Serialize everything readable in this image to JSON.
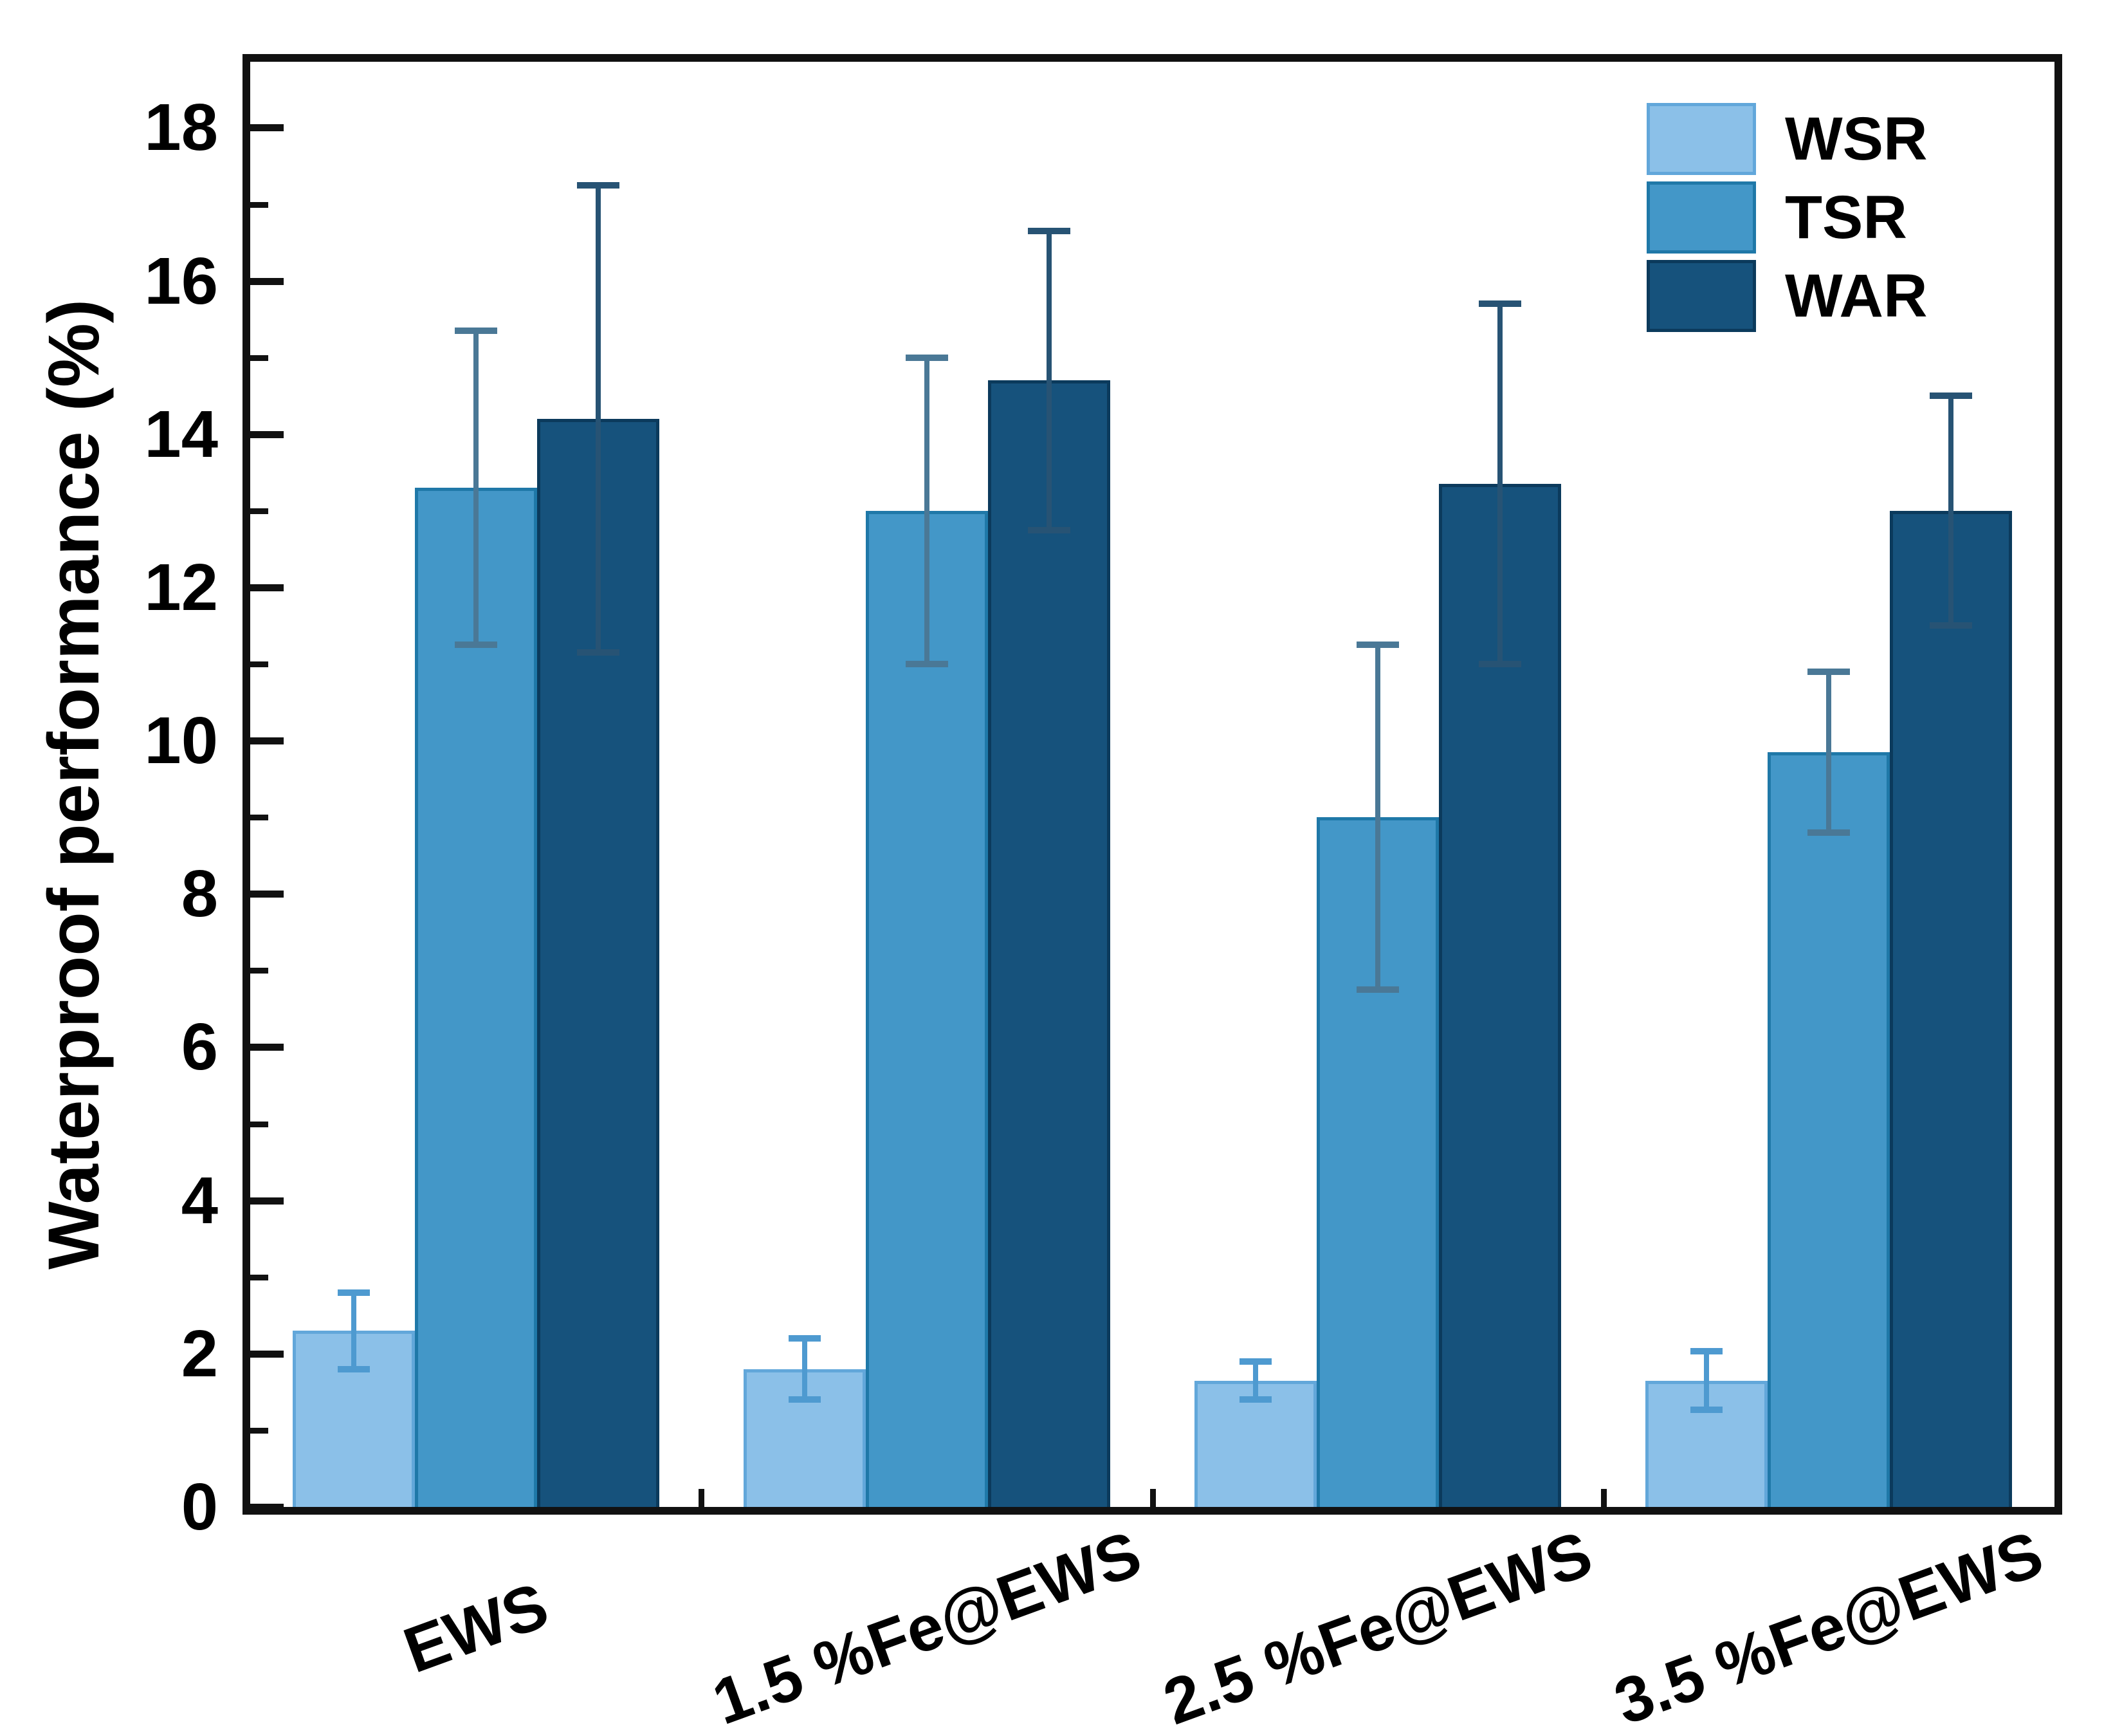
{
  "figure": {
    "background": "#ffffff",
    "axis_color": "#111111"
  },
  "chart_data": {
    "type": "bar",
    "title": "",
    "xlabel": "",
    "ylabel": "Waterproof performance (%)",
    "categories": [
      "EWS",
      "1.5 %Fe@EWS",
      "2.5 %Fe@EWS",
      "3.5 %Fe@EWS"
    ],
    "series": [
      {
        "name": "WSR",
        "fill": "#8bc0e8",
        "edge": "#62a7da",
        "error_color": "#4e9ad0",
        "values": [
          2.3,
          1.8,
          1.65,
          1.65
        ],
        "errors": [
          0.5,
          0.4,
          0.25,
          0.38
        ]
      },
      {
        "name": "TSR",
        "fill": "#4397c8",
        "edge": "#1f78a8",
        "error_color": "#4a7896",
        "values": [
          13.3,
          13.0,
          9.0,
          9.85
        ],
        "errors": [
          2.05,
          2.0,
          2.25,
          1.05
        ]
      },
      {
        "name": "WAR",
        "fill": "#16527c",
        "edge": "#0b3a5c",
        "error_color": "#275374",
        "values": [
          14.2,
          14.7,
          13.35,
          13.0
        ],
        "errors": [
          3.05,
          1.95,
          2.35,
          1.5
        ]
      }
    ],
    "ylim": [
      0,
      18
    ],
    "yticks_major": [
      0,
      2,
      4,
      6,
      8,
      10,
      12,
      14,
      16,
      18
    ],
    "yticks_minor": [
      1,
      3,
      5,
      7,
      9,
      11,
      13,
      15,
      17
    ],
    "grid": false,
    "legend_position": "top-right-inside",
    "x_tick_rotation_deg": -20
  }
}
